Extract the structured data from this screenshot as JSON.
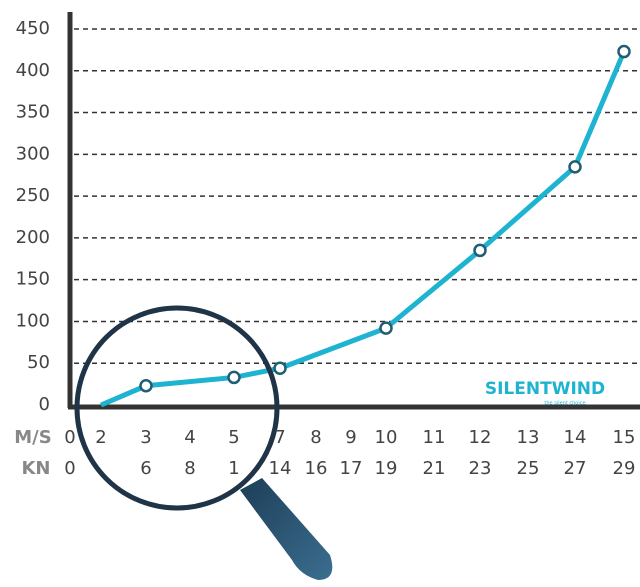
{
  "chart_data": {
    "type": "line",
    "x_row_label": "M/S",
    "x2_row_label": "KN",
    "xticks": [
      0,
      2,
      3,
      4,
      5,
      7,
      8,
      9,
      10,
      11,
      12,
      13,
      14,
      15
    ],
    "x2ticks": [
      0,
      null,
      6,
      8,
      1,
      14,
      16,
      17,
      19,
      21,
      23,
      25,
      27,
      29
    ],
    "series": [
      {
        "color": "#1eb3d0",
        "x": [
          2,
          3,
          5,
          7,
          10,
          12,
          14,
          15
        ],
        "values": [
          0,
          23,
          33,
          44,
          92,
          185,
          285,
          423
        ]
      }
    ],
    "ylim": [
      0,
      450
    ],
    "yticks": [
      0,
      50,
      100,
      150,
      200,
      250,
      300,
      350,
      400,
      450
    ],
    "grid": true,
    "logo": "SILENTWIND",
    "logo_tagline": "the silent choice"
  }
}
